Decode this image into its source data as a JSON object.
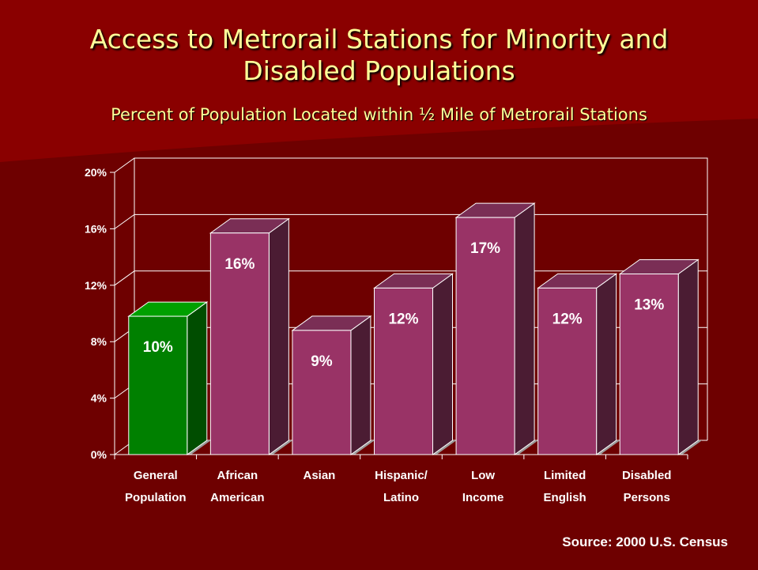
{
  "title_line1": "Access to Metrorail Stations for Minority and",
  "title_line2": "Disabled Populations",
  "subtitle": "Percent of Population Located within ½ Mile of Metrorail Stations",
  "source": "Source: 2000 U.S. Census",
  "chart_data": {
    "type": "bar",
    "categories": [
      [
        "General",
        "Population"
      ],
      [
        "African",
        "American"
      ],
      [
        "Asian"
      ],
      [
        "Hispanic/",
        "Latino"
      ],
      [
        "Low",
        "Income"
      ],
      [
        "Limited",
        "English"
      ],
      [
        "Disabled",
        "Persons"
      ]
    ],
    "values": [
      9.8,
      15.7,
      8.8,
      11.8,
      16.8,
      11.8,
      12.8
    ],
    "data_labels": [
      "10%",
      "16%",
      "9%",
      "12%",
      "17%",
      "12%",
      "13%"
    ],
    "y_ticks": [
      "0%",
      "4%",
      "8%",
      "12%",
      "16%",
      "20%"
    ],
    "ylim": [
      0,
      20
    ],
    "grid": true,
    "colors": {
      "general_front": "#008000",
      "general_side": "#004d00",
      "general_top": "#00a000",
      "bar_front": "#993366",
      "bar_side": "#4b1c33",
      "bar_top": "#7a2e55",
      "shadow": "#9a9a9a"
    }
  }
}
